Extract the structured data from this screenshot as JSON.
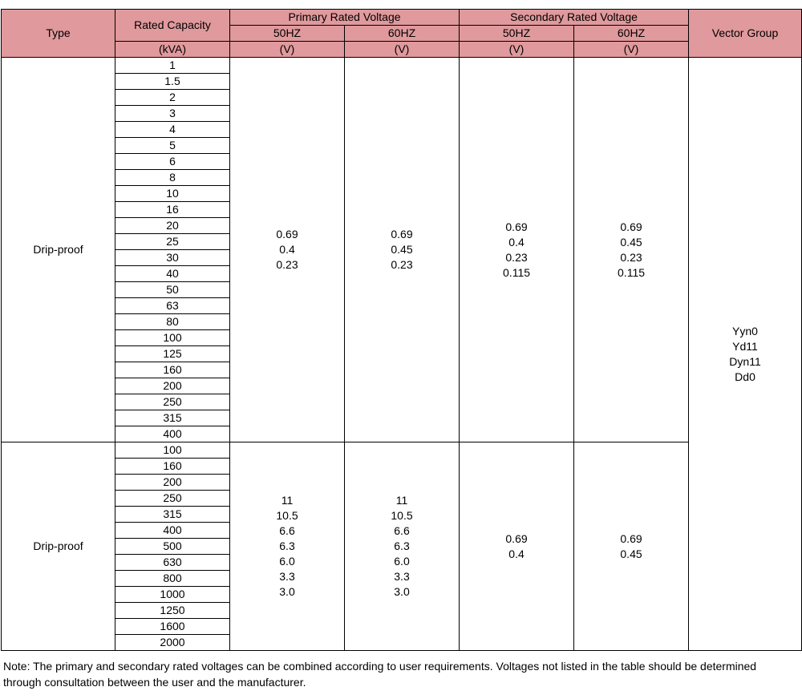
{
  "colors": {
    "header_bg": "#e0999c",
    "border": "#000000",
    "page_bg": "#ffffff"
  },
  "header": {
    "type": "Type",
    "rated_capacity": "Rated Capacity",
    "rated_capacity_unit": "(kVA)",
    "primary_voltage": "Primary Rated Voltage",
    "secondary_voltage": "Secondary Rated Voltage",
    "vector_group": "Vector Group",
    "freq_50": "50HZ",
    "freq_60": "60HZ",
    "unit_v": "(V)"
  },
  "groups": [
    {
      "type": "Drip-proof",
      "capacities": [
        "1",
        "1.5",
        "2",
        "3",
        "4",
        "5",
        "6",
        "8",
        "10",
        "16",
        "20",
        "25",
        "30",
        "40",
        "50",
        "63",
        "80",
        "100",
        "125",
        "160",
        "200",
        "250",
        "315",
        "400"
      ],
      "primary_50hz": "0.69\n0.4\n0.23",
      "primary_60hz": "0.69\n0.45\n0.23",
      "secondary_50hz": "0.69\n0.4\n0.23\n0.115",
      "secondary_60hz": "0.69\n0.45\n0.23\n0.115"
    },
    {
      "type": "Drip-proof",
      "capacities": [
        "100",
        "160",
        "200",
        "250",
        "315",
        "400",
        "500",
        "630",
        "800",
        "1000",
        "1250",
        "1600",
        "2000"
      ],
      "primary_50hz": "11\n10.5\n6.6\n6.3\n6.0\n3.3\n3.0",
      "primary_60hz": "11\n10.5\n6.6\n6.3\n6.0\n3.3\n3.0",
      "secondary_50hz": "0.69\n0.4",
      "secondary_60hz": "0.69\n0.45"
    }
  ],
  "vector_group": "Yyn0\nYd11\nDyn11\nDd0",
  "note": "Note: The primary and secondary rated voltages can be combined according to user requirements. Voltages not listed in the table should be determined through consultation between the user and the manufacturer."
}
